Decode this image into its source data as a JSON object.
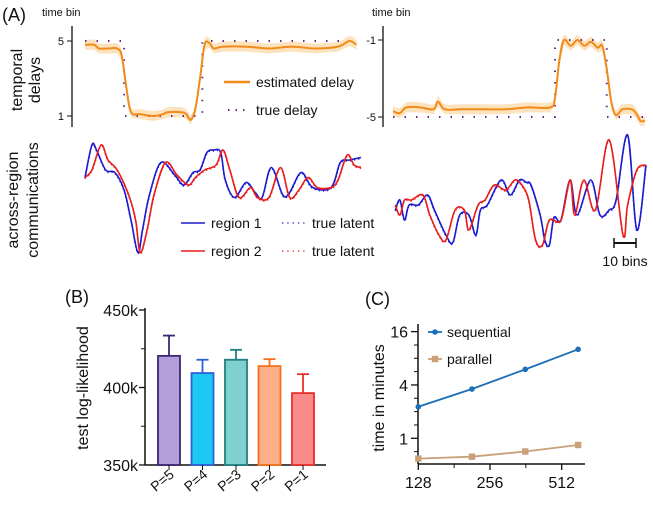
{
  "panels": {
    "a": "(A)",
    "b": "(B)",
    "c": "(C)"
  },
  "chart_data": [
    {
      "type": "line",
      "panel": "A-left-delays",
      "ylabel_line1": "temporal",
      "ylabel_line2": "delays",
      "yunit": "time bin",
      "yticks": [
        "5",
        "1"
      ],
      "ytick_values": [
        5,
        1
      ],
      "legend": {
        "estimated": "estimated delay",
        "true": "true delay"
      },
      "colors": {
        "estimated": "#f28a1a",
        "band": "#fbdcae",
        "true": "#6a2a8a"
      },
      "estimated": [
        [
          0,
          4.8
        ],
        [
          4,
          4.8
        ],
        [
          6,
          4.6
        ],
        [
          10,
          4.6
        ],
        [
          14,
          4.6
        ],
        [
          16,
          4.2
        ],
        [
          18,
          2.5
        ],
        [
          20,
          1.2
        ],
        [
          24,
          1.1
        ],
        [
          30,
          1.0
        ],
        [
          34,
          1.1
        ],
        [
          36,
          1.2
        ],
        [
          42,
          1.2
        ],
        [
          44,
          1.1
        ],
        [
          46,
          0.8
        ],
        [
          48,
          1.4
        ],
        [
          50,
          3.0
        ],
        [
          52,
          4.8
        ],
        [
          54,
          4.9
        ],
        [
          56,
          4.6
        ],
        [
          60,
          4.7
        ],
        [
          70,
          4.7
        ],
        [
          80,
          4.6
        ],
        [
          90,
          4.7
        ],
        [
          100,
          4.6
        ],
        [
          110,
          4.7
        ],
        [
          115,
          5.0
        ],
        [
          118,
          4.8
        ]
      ],
      "true": [
        [
          0,
          5
        ],
        [
          17,
          5
        ],
        [
          17,
          1
        ],
        [
          51,
          1
        ],
        [
          51,
          5
        ],
        [
          118,
          5
        ]
      ]
    },
    {
      "type": "line",
      "panel": "A-right-delays",
      "yunit": "time bin",
      "yticks": [
        "-1",
        "-5"
      ],
      "ytick_values": [
        -1,
        -5
      ],
      "estimated": [
        [
          0,
          -4.7
        ],
        [
          3,
          -4.8
        ],
        [
          6,
          -4.5
        ],
        [
          12,
          -4.5
        ],
        [
          18,
          -4.6
        ],
        [
          20,
          -4.2
        ],
        [
          23,
          -4.6
        ],
        [
          30,
          -4.6
        ],
        [
          40,
          -4.6
        ],
        [
          50,
          -4.6
        ],
        [
          60,
          -4.5
        ],
        [
          70,
          -4.5
        ],
        [
          72,
          -4.0
        ],
        [
          74,
          -2.0
        ],
        [
          76,
          -1.0
        ],
        [
          79,
          -1.3
        ],
        [
          82,
          -1.0
        ],
        [
          85,
          -1.3
        ],
        [
          88,
          -1.1
        ],
        [
          91,
          -1.4
        ],
        [
          93,
          -1.3
        ],
        [
          95,
          -2.5
        ],
        [
          97,
          -4.2
        ],
        [
          99,
          -4.9
        ],
        [
          102,
          -4.6
        ],
        [
          106,
          -4.6
        ],
        [
          108,
          -4.8
        ],
        [
          110,
          -5.2
        ],
        [
          112,
          -5.2
        ]
      ],
      "true": [
        [
          0,
          -5
        ],
        [
          72,
          -5
        ],
        [
          72,
          -1
        ],
        [
          95,
          -1
        ],
        [
          95,
          -5
        ],
        [
          112,
          -5
        ]
      ]
    },
    {
      "type": "line",
      "panel": "A-left-communications",
      "ylabel_line1": "across-region",
      "ylabel_line2": "communications",
      "legend": {
        "region1": "region 1",
        "region2": "region 2",
        "true1": "true latent",
        "true2": "true latent"
      },
      "colors": {
        "region1": "#1a1ad0",
        "region2": "#e81c1c"
      },
      "region1": [
        [
          0,
          -0.1
        ],
        [
          3,
          1.2
        ],
        [
          5,
          1.0
        ],
        [
          9,
          0.2
        ],
        [
          13,
          0.1
        ],
        [
          17,
          -0.6
        ],
        [
          20,
          -1.8
        ],
        [
          23,
          -3.1
        ],
        [
          25,
          -2.2
        ],
        [
          28,
          -0.8
        ],
        [
          33,
          0.5
        ],
        [
          39,
          0
        ],
        [
          43,
          -0.4
        ],
        [
          47,
          0.1
        ],
        [
          50,
          0.2
        ],
        [
          53,
          0.9
        ],
        [
          56,
          1.0
        ],
        [
          59,
          0.9
        ],
        [
          61,
          -0.2
        ],
        [
          65,
          -0.9
        ],
        [
          70,
          -0.3
        ],
        [
          74,
          -0.7
        ],
        [
          77,
          -0.9
        ],
        [
          81,
          0.3
        ],
        [
          86,
          -0.8
        ],
        [
          89,
          -0.7
        ],
        [
          94,
          0.1
        ],
        [
          99,
          -0.5
        ],
        [
          107,
          -0.5
        ],
        [
          111,
          0.5
        ],
        [
          115,
          0.6
        ],
        [
          120,
          0.7
        ]
      ],
      "region2": [
        [
          0,
          -0.1
        ],
        [
          3,
          0.2
        ],
        [
          7,
          1.2
        ],
        [
          10,
          0.6
        ],
        [
          14,
          0.2
        ],
        [
          19,
          -0.8
        ],
        [
          22,
          -1.8
        ],
        [
          24,
          -3.1
        ],
        [
          27,
          -2.2
        ],
        [
          30,
          -0.8
        ],
        [
          35,
          0.5
        ],
        [
          40,
          0
        ],
        [
          45,
          -0.4
        ],
        [
          48,
          -0.1
        ],
        [
          52,
          0.2
        ],
        [
          57,
          0.4
        ],
        [
          60,
          1.0
        ],
        [
          63,
          0.2
        ],
        [
          67,
          -0.9
        ],
        [
          72,
          -0.5
        ],
        [
          75,
          -0.9
        ],
        [
          80,
          -0.9
        ],
        [
          85,
          0.3
        ],
        [
          89,
          -0.9
        ],
        [
          93,
          -0.6
        ],
        [
          97,
          -0.1
        ],
        [
          101,
          -0.5
        ],
        [
          107,
          -0.5
        ],
        [
          110,
          -0.2
        ],
        [
          114,
          0.8
        ],
        [
          117,
          0.4
        ],
        [
          120,
          0.3
        ]
      ]
    },
    {
      "type": "line",
      "panel": "A-right-communications",
      "scalebar": "10 bins",
      "scalebar_bins": 10,
      "region1": [
        [
          1,
          -0.4
        ],
        [
          3,
          0
        ],
        [
          5,
          -0.8
        ],
        [
          7,
          -0.2
        ],
        [
          11,
          -0.2
        ],
        [
          15,
          0.2
        ],
        [
          18,
          -0.4
        ],
        [
          23,
          -1.4
        ],
        [
          26,
          -1.7
        ],
        [
          29,
          -0.6
        ],
        [
          33,
          -0.6
        ],
        [
          36,
          -1.4
        ],
        [
          38,
          -0.4
        ],
        [
          41,
          -0.2
        ],
        [
          47,
          0.8
        ],
        [
          51,
          0.2
        ],
        [
          55,
          0.8
        ],
        [
          58,
          0.7
        ],
        [
          60,
          0.6
        ],
        [
          64,
          -0.6
        ],
        [
          66,
          -1.6
        ],
        [
          68,
          -1.8
        ],
        [
          70,
          -0.7
        ],
        [
          73,
          -0.8
        ],
        [
          77,
          0.8
        ],
        [
          80,
          -0.6
        ],
        [
          86,
          0.8
        ],
        [
          90,
          -0.6
        ],
        [
          94,
          -0.4
        ],
        [
          97,
          0
        ],
        [
          102,
          2.6
        ],
        [
          106,
          -1.2
        ],
        [
          110,
          1.4
        ]
      ],
      "region2": [
        [
          1,
          -0.2
        ],
        [
          3,
          -0.6
        ],
        [
          5,
          0
        ],
        [
          8,
          0
        ],
        [
          13,
          0.2
        ],
        [
          16,
          -0.6
        ],
        [
          20,
          -1.4
        ],
        [
          23,
          -1.6
        ],
        [
          27,
          -0.4
        ],
        [
          31,
          -0.4
        ],
        [
          33,
          -1.2
        ],
        [
          37,
          -0.2
        ],
        [
          40,
          0
        ],
        [
          44,
          0.6
        ],
        [
          49,
          0.4
        ],
        [
          53,
          0.8
        ],
        [
          56,
          0.6
        ],
        [
          59,
          0
        ],
        [
          62,
          -1.6
        ],
        [
          65,
          -1.8
        ],
        [
          68,
          -0.8
        ],
        [
          73,
          -0.8
        ],
        [
          77,
          0.8
        ],
        [
          79,
          -0.6
        ],
        [
          83,
          0.8
        ],
        [
          88,
          -0.4
        ],
        [
          94,
          2.4
        ],
        [
          100,
          -1.4
        ],
        [
          102,
          -0.2
        ],
        [
          106,
          1.2
        ],
        [
          110,
          1.4
        ]
      ]
    },
    {
      "type": "bar",
      "panel": "B",
      "ylabel": "test log-likelihood",
      "ylim": [
        350000,
        450000
      ],
      "yticks": [
        "450k",
        "400k",
        "350k"
      ],
      "ytick_values": [
        450000,
        400000,
        350000
      ],
      "categories": [
        "P=5",
        "P=4",
        "P=3",
        "P=2",
        "P=1"
      ],
      "values": [
        420400,
        409300,
        417900,
        413800,
        396400
      ],
      "error_upper": [
        433500,
        417900,
        424300,
        418300,
        408600
      ],
      "fill_colors": [
        "#b39ddb",
        "#1ec8f5",
        "#80d0d0",
        "#fcb08a",
        "#fb8a8a"
      ],
      "edge_colors": [
        "#3b2770",
        "#2a60d8",
        "#1f7f82",
        "#f5701a",
        "#e8302a"
      ]
    },
    {
      "type": "line",
      "panel": "C",
      "ylabel": "time in minutes",
      "yscale": "log2",
      "xscale": "log2",
      "ylim": [
        0.5,
        16
      ],
      "xlim": [
        128,
        680
      ],
      "yticks": [
        "16",
        "4",
        "1"
      ],
      "ytick_values": [
        16,
        4,
        1
      ],
      "xticks": [
        "128",
        "256",
        "512"
      ],
      "xtick_values": [
        128,
        256,
        512
      ],
      "x": [
        128,
        215,
        360,
        600
      ],
      "series": [
        {
          "name": "sequential",
          "values": [
            2.27,
            3.6,
            6.0,
            10.1
          ],
          "color": "#1a6fb8",
          "marker": "circle"
        },
        {
          "name": "parallel",
          "values": [
            0.59,
            0.62,
            0.71,
            0.84
          ],
          "color": "#c9a078",
          "marker": "square"
        }
      ]
    }
  ]
}
